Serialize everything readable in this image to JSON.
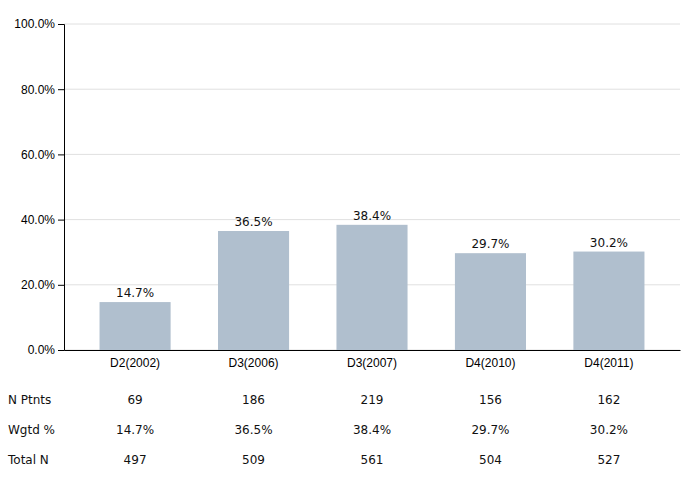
{
  "chart_data": {
    "type": "bar",
    "categories": [
      "D2(2002)",
      "D3(2006)",
      "D3(2007)",
      "D4(2010)",
      "D4(2011)"
    ],
    "values": [
      14.7,
      36.5,
      38.4,
      29.7,
      30.2
    ],
    "value_labels": [
      "14.7%",
      "36.5%",
      "38.4%",
      "29.7%",
      "30.2%"
    ],
    "data_labels": true,
    "color": "#b0bfce",
    "ylim": [
      0,
      100
    ],
    "yticks": [
      {
        "value": 0,
        "label": "0.0%"
      },
      {
        "value": 20,
        "label": "20.0%"
      },
      {
        "value": 40,
        "label": "40.0%"
      },
      {
        "value": 60,
        "label": "60.0%"
      },
      {
        "value": 80,
        "label": "80.0%"
      },
      {
        "value": 100,
        "label": "100.0%"
      }
    ],
    "grid": true,
    "table": {
      "rows": [
        {
          "label": "N Ptnts",
          "values": [
            69,
            186,
            219,
            156,
            162
          ]
        },
        {
          "label": "Wgtd %",
          "values": [
            14.7,
            36.5,
            38.4,
            29.7,
            30.2
          ],
          "value_labels": [
            "14.7%",
            "36.5%",
            "38.4%",
            "29.7%",
            "30.2%"
          ]
        },
        {
          "label": "Total N",
          "values": [
            497,
            509,
            561,
            504,
            527
          ]
        }
      ]
    }
  }
}
